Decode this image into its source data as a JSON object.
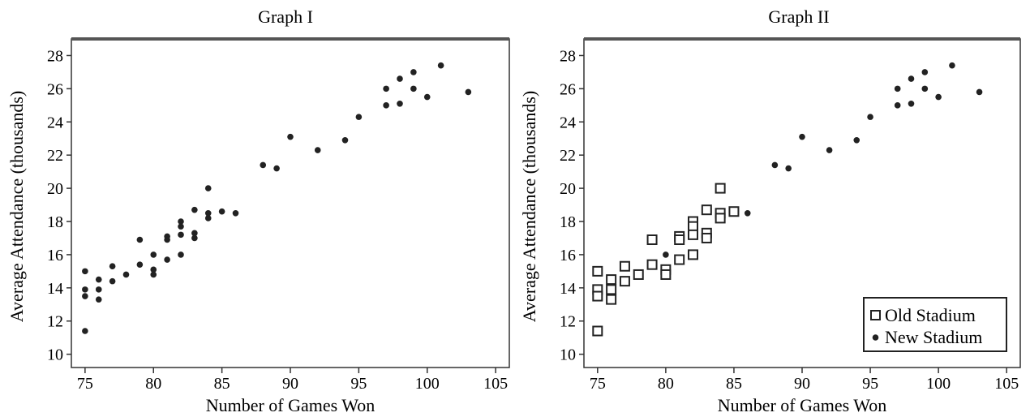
{
  "chart_data": [
    {
      "type": "scatter",
      "title": "Graph I",
      "xlabel": "Number of Games Won",
      "ylabel": "Average Attendance (thousands)",
      "xlim": [
        74,
        106
      ],
      "ylim": [
        9.2,
        29
      ],
      "xticks": [
        "75",
        "80",
        "85",
        "90",
        "95",
        "100",
        "105"
      ],
      "yticks": [
        "10",
        "12",
        "14",
        "16",
        "18",
        "20",
        "22",
        "24",
        "26",
        "28"
      ],
      "grid": false,
      "series": [
        {
          "marker": "dot",
          "points": [
            [
              75,
              15.0
            ],
            [
              75,
              13.9
            ],
            [
              75,
              13.5
            ],
            [
              75,
              11.4
            ],
            [
              76,
              14.5
            ],
            [
              76,
              13.9
            ],
            [
              76,
              13.3
            ],
            [
              77,
              15.3
            ],
            [
              77,
              14.4
            ],
            [
              78,
              14.8
            ],
            [
              79,
              16.9
            ],
            [
              79,
              15.4
            ],
            [
              80,
              16.0
            ],
            [
              80,
              15.1
            ],
            [
              80,
              14.8
            ],
            [
              81,
              17.1
            ],
            [
              81,
              16.9
            ],
            [
              81,
              15.7
            ],
            [
              82,
              18.0
            ],
            [
              82,
              17.7
            ],
            [
              82,
              17.2
            ],
            [
              82,
              16.0
            ],
            [
              83,
              18.7
            ],
            [
              83,
              17.3
            ],
            [
              83,
              17.0
            ],
            [
              84,
              20.0
            ],
            [
              84,
              18.5
            ],
            [
              84,
              18.2
            ],
            [
              85,
              18.6
            ],
            [
              86,
              18.5
            ],
            [
              88,
              21.4
            ],
            [
              89,
              21.2
            ],
            [
              90,
              23.1
            ],
            [
              92,
              22.3
            ],
            [
              94,
              22.9
            ],
            [
              95,
              24.3
            ],
            [
              97,
              26.0
            ],
            [
              97,
              25.0
            ],
            [
              98,
              26.6
            ],
            [
              98,
              25.1
            ],
            [
              99,
              27.0
            ],
            [
              99,
              26.0
            ],
            [
              100,
              25.5
            ],
            [
              101,
              27.4
            ],
            [
              103,
              25.8
            ]
          ]
        }
      ]
    },
    {
      "type": "scatter",
      "title": "Graph II",
      "xlabel": "Number of Games Won",
      "ylabel": "Average Attendance (thousands)",
      "xlim": [
        74,
        106
      ],
      "ylim": [
        9.2,
        29
      ],
      "xticks": [
        "75",
        "80",
        "85",
        "90",
        "95",
        "100",
        "105"
      ],
      "yticks": [
        "10",
        "12",
        "14",
        "16",
        "18",
        "20",
        "22",
        "24",
        "26",
        "28"
      ],
      "grid": false,
      "legend_position": "bottom-right",
      "series": [
        {
          "name": "Old Stadium",
          "marker": "square",
          "points": [
            [
              75,
              15.0
            ],
            [
              75,
              13.9
            ],
            [
              75,
              13.5
            ],
            [
              75,
              11.4
            ],
            [
              76,
              14.5
            ],
            [
              76,
              13.9
            ],
            [
              76,
              13.3
            ],
            [
              77,
              15.3
            ],
            [
              77,
              14.4
            ],
            [
              78,
              14.8
            ],
            [
              79,
              16.9
            ],
            [
              79,
              15.4
            ],
            [
              80,
              15.1
            ],
            [
              80,
              14.8
            ],
            [
              81,
              17.1
            ],
            [
              81,
              16.9
            ],
            [
              81,
              15.7
            ],
            [
              82,
              18.0
            ],
            [
              82,
              17.7
            ],
            [
              82,
              17.2
            ],
            [
              82,
              16.0
            ],
            [
              83,
              18.7
            ],
            [
              83,
              17.3
            ],
            [
              83,
              17.0
            ],
            [
              84,
              20.0
            ],
            [
              84,
              18.5
            ],
            [
              84,
              18.2
            ],
            [
              85,
              18.6
            ]
          ]
        },
        {
          "name": "New Stadium",
          "marker": "dot",
          "points": [
            [
              80,
              16.0
            ],
            [
              86,
              18.5
            ],
            [
              88,
              21.4
            ],
            [
              89,
              21.2
            ],
            [
              90,
              23.1
            ],
            [
              92,
              22.3
            ],
            [
              94,
              22.9
            ],
            [
              95,
              24.3
            ],
            [
              97,
              26.0
            ],
            [
              97,
              25.0
            ],
            [
              98,
              26.6
            ],
            [
              98,
              25.1
            ],
            [
              99,
              27.0
            ],
            [
              99,
              26.0
            ],
            [
              100,
              25.5
            ],
            [
              101,
              27.4
            ],
            [
              103,
              25.8
            ]
          ]
        }
      ]
    }
  ]
}
